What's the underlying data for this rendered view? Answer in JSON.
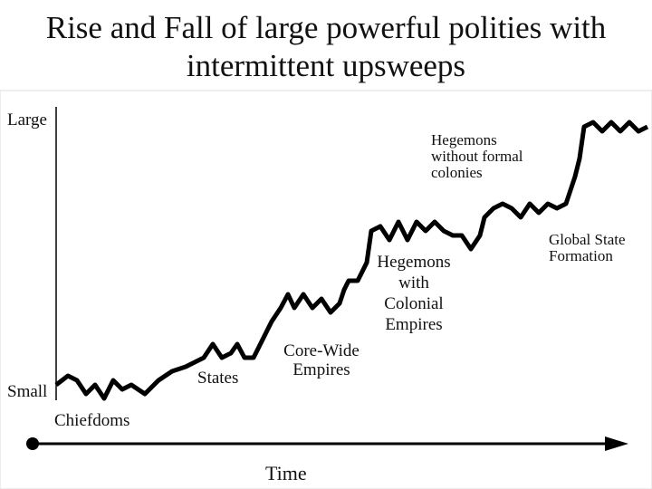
{
  "title": "Rise and Fall of large powerful polities with intermittent upsweeps",
  "axis": {
    "top": "Large",
    "bottom": "Small",
    "x": "Time"
  },
  "labels": [
    {
      "lines": [
        "Chiefdoms"
      ]
    },
    {
      "lines": [
        "States"
      ]
    },
    {
      "lines": [
        "Core-Wide",
        "Empires"
      ]
    },
    {
      "lines": [
        "Hegemons",
        "with",
        "Colonial",
        "Empires"
      ]
    },
    {
      "lines": [
        "Hegemons",
        "without formal",
        "colonies"
      ]
    },
    {
      "lines": [
        "Global State",
        "Formation"
      ]
    }
  ]
}
